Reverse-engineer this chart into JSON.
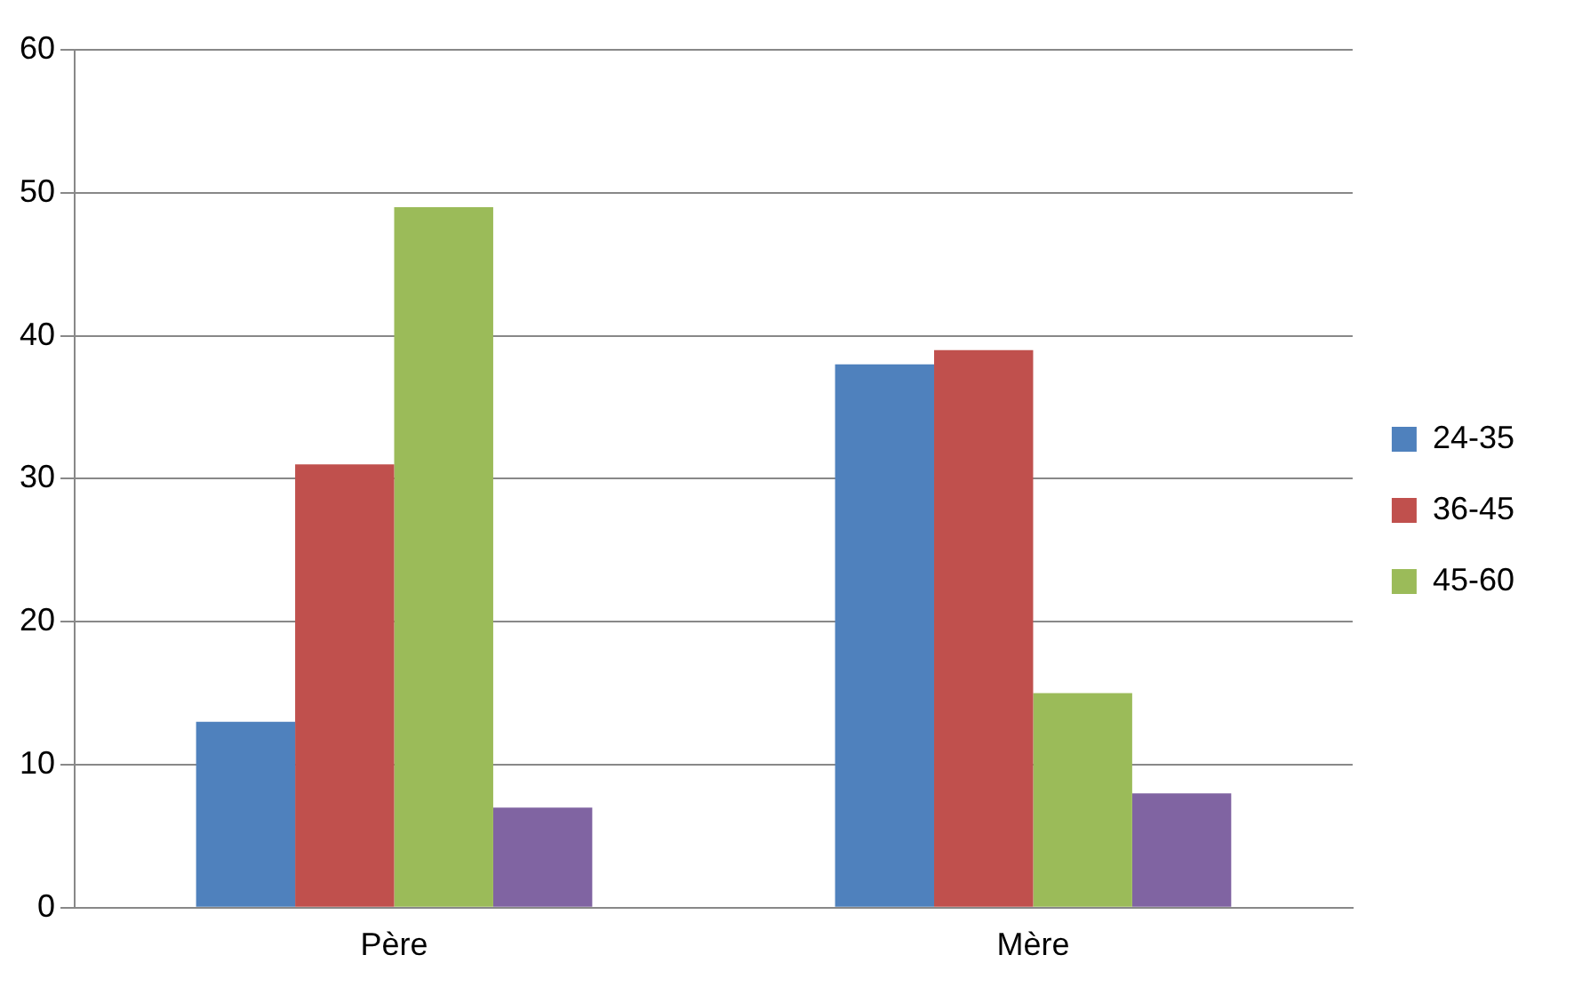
{
  "chart_data": {
    "type": "bar",
    "categories": [
      "Père",
      "Mère"
    ],
    "series": [
      {
        "name": "24-35",
        "color": "#4f81bd",
        "values": [
          13,
          38
        ]
      },
      {
        "name": "36-45",
        "color": "#c0504d",
        "values": [
          31,
          39
        ]
      },
      {
        "name": "45-60",
        "color": "#9bbb59",
        "values": [
          49,
          15
        ]
      },
      {
        "color": "#8064a2",
        "values": [
          7,
          8
        ]
      }
    ],
    "ylim": [
      0,
      60
    ],
    "yticks": [
      0,
      10,
      20,
      30,
      40,
      50,
      60
    ],
    "grid": "y",
    "legend": "right"
  }
}
